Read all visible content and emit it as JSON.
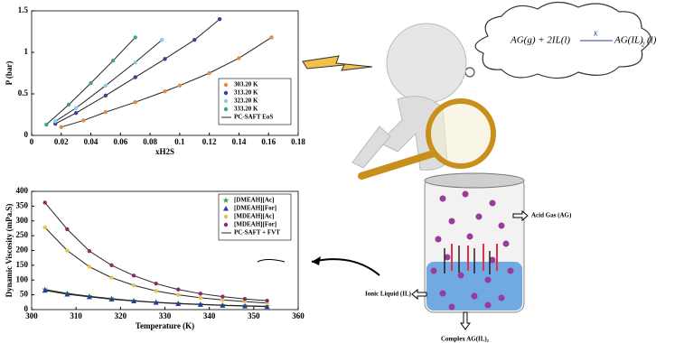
{
  "chart_data": [
    {
      "type": "scatter",
      "x_label": "xH2S",
      "y_label": "P (bar)",
      "xlim": [
        0,
        0.18
      ],
      "xticks": [
        0,
        0.02,
        0.04,
        0.06,
        0.08,
        0.1,
        0.12,
        0.14,
        0.16,
        0.18
      ],
      "ylim": [
        0,
        1.5
      ],
      "yticks": [
        0,
        0.5,
        1,
        1.5
      ],
      "legend": "lower right",
      "line_legend": "PC-SAFT EoS",
      "line_color": "#222222",
      "series": [
        {
          "name": "303.20 K",
          "color": "#e8893a",
          "marker": "circle",
          "x": [
            0.02,
            0.035,
            0.05,
            0.07,
            0.09,
            0.1,
            0.12,
            0.14,
            0.162
          ],
          "values": [
            0.1,
            0.18,
            0.28,
            0.4,
            0.53,
            0.6,
            0.75,
            0.93,
            1.18
          ]
        },
        {
          "name": "313.20 K",
          "color": "#3a3f9e",
          "marker": "circle",
          "x": [
            0.016,
            0.03,
            0.05,
            0.07,
            0.09,
            0.11,
            0.127
          ],
          "values": [
            0.14,
            0.27,
            0.48,
            0.7,
            0.92,
            1.15,
            1.4
          ]
        },
        {
          "name": "323.20 K",
          "color": "#7fd3e8",
          "marker": "circle",
          "x": [
            0.016,
            0.03,
            0.05,
            0.07,
            0.088
          ],
          "values": [
            0.17,
            0.33,
            0.6,
            0.88,
            1.15
          ]
        },
        {
          "name": "333.20 K",
          "color": "#3aa58a",
          "marker": "circle",
          "x": [
            0.01,
            0.025,
            0.04,
            0.055,
            0.07
          ],
          "values": [
            0.13,
            0.37,
            0.63,
            0.9,
            1.18
          ]
        }
      ]
    },
    {
      "type": "scatter",
      "x_label": "Temperature (K)",
      "y_label": "Dynamic Viscosity (mPa.S)",
      "xlim": [
        300,
        360
      ],
      "xticks": [
        300,
        310,
        320,
        330,
        340,
        350,
        360
      ],
      "ylim": [
        0,
        400
      ],
      "yticks": [
        0,
        50,
        100,
        150,
        200,
        250,
        300,
        350,
        400
      ],
      "legend": "upper right",
      "line_legend": "PC-SAFT + FVT",
      "line_color": "#222222",
      "series": [
        {
          "name": "[DMEAH][Ac]",
          "color": "#3aa55a",
          "marker": "star",
          "x": [
            303,
            308,
            313,
            318,
            323,
            328,
            333,
            338,
            343,
            348,
            353
          ],
          "values": [
            68,
            55,
            45,
            37,
            30,
            25,
            21,
            18,
            15,
            13,
            11
          ]
        },
        {
          "name": "[DMEAH][For]",
          "color": "#2a3aa0",
          "marker": "triangle",
          "x": [
            303,
            308,
            313,
            318,
            323,
            328,
            333,
            338,
            343,
            348,
            353
          ],
          "values": [
            65,
            52,
            43,
            35,
            29,
            24,
            20,
            17,
            14,
            12,
            10
          ]
        },
        {
          "name": "[MDEAH][Ac]",
          "color": "#e0c84a",
          "marker": "circle",
          "x": [
            303,
            308,
            313,
            318,
            323,
            328,
            333,
            338,
            343,
            348,
            353
          ],
          "values": [
            278,
            200,
            145,
            108,
            82,
            63,
            50,
            40,
            33,
            27,
            22
          ]
        },
        {
          "name": "[MDEAH][For]",
          "color": "#8a2a6a",
          "marker": "circle",
          "x": [
            303,
            308,
            313,
            318,
            323,
            328,
            333,
            338,
            343,
            348,
            353
          ],
          "values": [
            362,
            272,
            198,
            150,
            115,
            88,
            68,
            54,
            44,
            36,
            30
          ]
        }
      ]
    }
  ],
  "illustration": {
    "equation": {
      "left": "AG(g) + 2IL(l)",
      "k": "K",
      "right": "AG(IL)",
      "sub": "2",
      "tail": "(l)"
    },
    "acid_gas": "Acid Gas (AG)",
    "ionic_liquid": "Ionic Liquid (IL)",
    "complex": "Complex AG(IL)₂"
  }
}
